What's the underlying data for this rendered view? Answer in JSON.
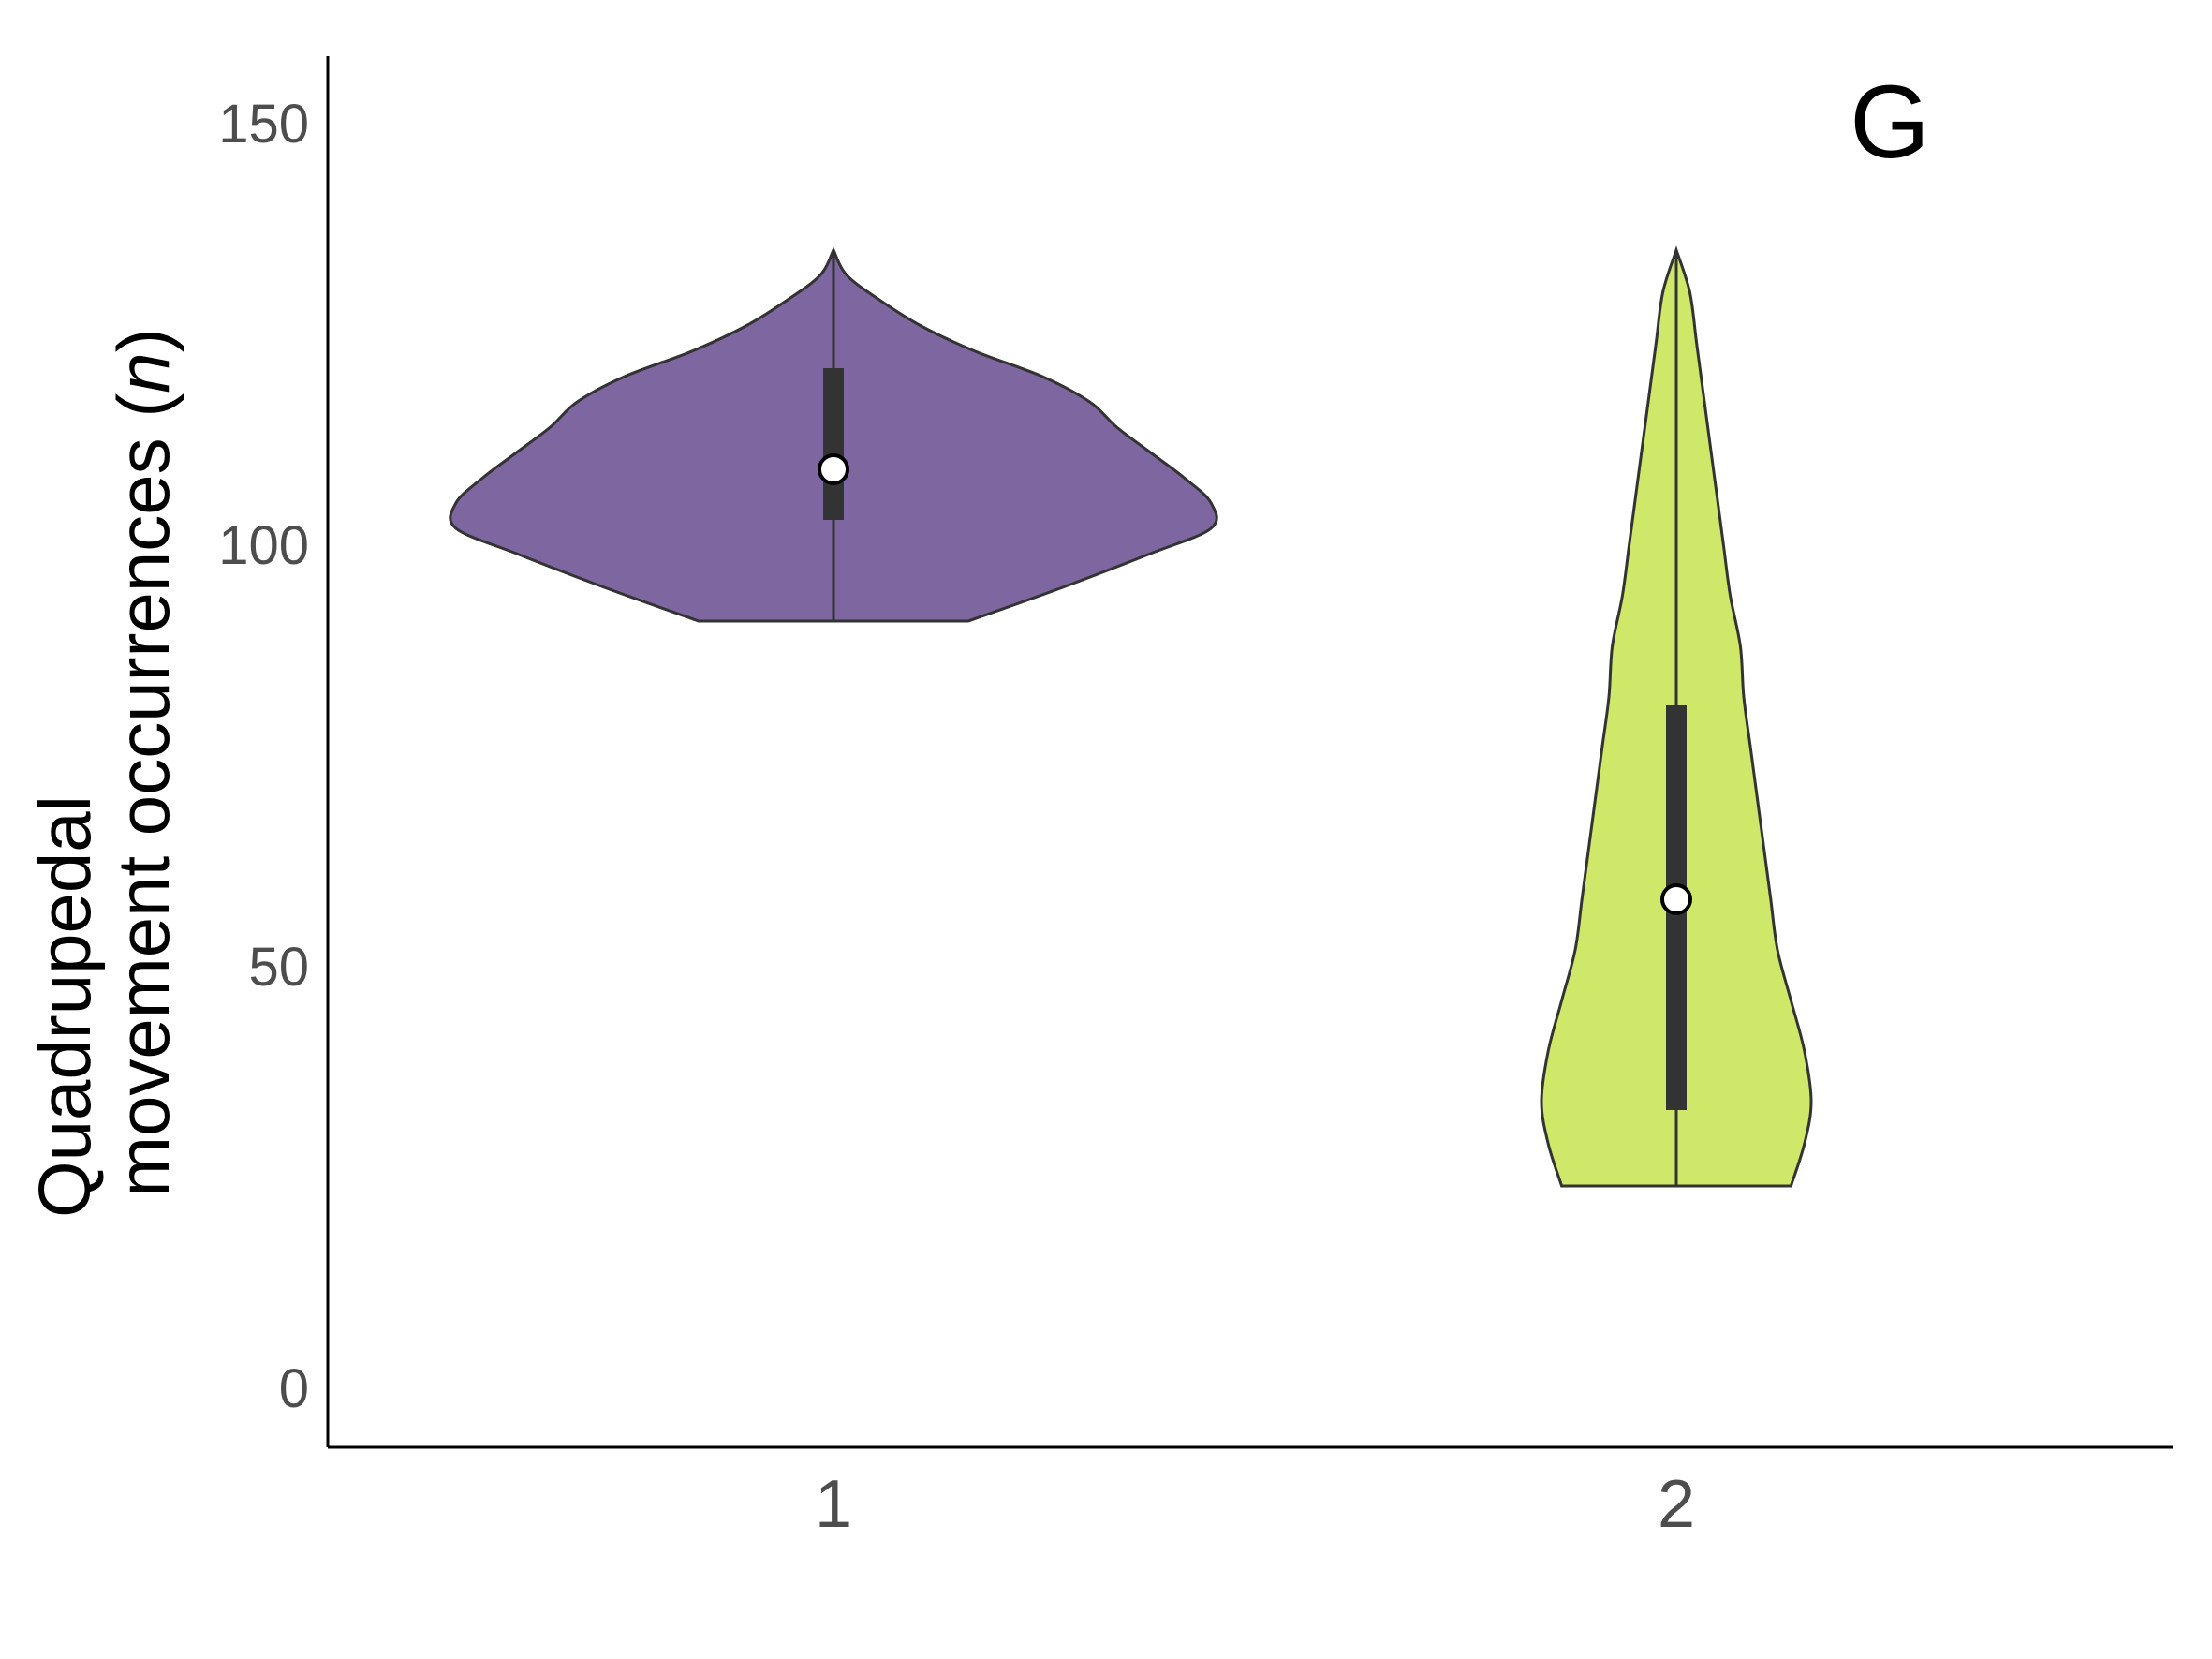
{
  "chart_data": {
    "type": "violin",
    "panel_label": "G",
    "ylabel_line1": "Quadrupedal",
    "ylabel_line2_main": "movement occurrences (",
    "ylabel_line2_italic": "n",
    "ylabel_line2_end": ")",
    "xlabel": "",
    "categories": [
      "1",
      "2"
    ],
    "ylim": [
      -7,
      158
    ],
    "yticks": [
      0,
      50,
      100,
      150
    ],
    "yticks_labels": [
      "0",
      "50",
      "100",
      "150"
    ],
    "grid": false,
    "series": [
      {
        "category": "1",
        "color": "#7e66a0",
        "min": 91,
        "max": 135,
        "q1": 103,
        "q3": 121,
        "median": 109,
        "density": [
          [
            91,
            0.2
          ],
          [
            95,
            0.34
          ],
          [
            99,
            0.47
          ],
          [
            102,
            0.56
          ],
          [
            105,
            0.56
          ],
          [
            108,
            0.52
          ],
          [
            111,
            0.47
          ],
          [
            114,
            0.42
          ],
          [
            117,
            0.38
          ],
          [
            120,
            0.31
          ],
          [
            123,
            0.21
          ],
          [
            126,
            0.13
          ],
          [
            129,
            0.07
          ],
          [
            132,
            0.02
          ],
          [
            135,
            0.0
          ]
        ]
      },
      {
        "category": "2",
        "color": "#cfe86a",
        "min": 24,
        "max": 135,
        "q1": 33,
        "q3": 81,
        "median": 58,
        "density": [
          [
            24,
            0.17
          ],
          [
            29,
            0.19
          ],
          [
            34,
            0.2
          ],
          [
            40,
            0.19
          ],
          [
            46,
            0.17
          ],
          [
            52,
            0.15
          ],
          [
            58,
            0.14
          ],
          [
            64,
            0.13
          ],
          [
            70,
            0.12
          ],
          [
            76,
            0.11
          ],
          [
            82,
            0.1
          ],
          [
            88,
            0.095
          ],
          [
            94,
            0.08
          ],
          [
            100,
            0.07
          ],
          [
            106,
            0.06
          ],
          [
            112,
            0.05
          ],
          [
            118,
            0.04
          ],
          [
            124,
            0.03
          ],
          [
            130,
            0.02
          ],
          [
            135,
            0.0
          ]
        ]
      }
    ]
  }
}
